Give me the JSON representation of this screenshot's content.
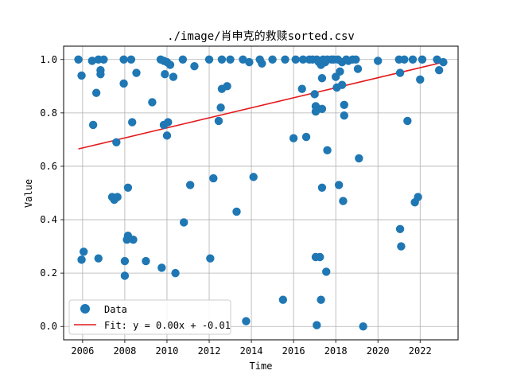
{
  "chart_data": {
    "type": "scatter",
    "title": "./image/肖申克的救赎sorted.csv",
    "xlabel": "Time",
    "ylabel": "Value",
    "xlim": [
      2005.1,
      2023.8
    ],
    "ylim": [
      -0.05,
      1.05
    ],
    "x_ticks": [
      2006,
      2008,
      2010,
      2012,
      2014,
      2016,
      2018,
      2020,
      2022
    ],
    "y_ticks": [
      0.0,
      0.2,
      0.4,
      0.6,
      0.8,
      1.0
    ],
    "x_tick_labels": [
      "2006",
      "2008",
      "2010",
      "2012",
      "2014",
      "2016",
      "2018",
      "2020",
      "2022"
    ],
    "y_tick_labels": [
      "0.0",
      "0.2",
      "0.4",
      "0.6",
      "0.8",
      "1.0"
    ],
    "grid": true,
    "legend_position": "lower-left",
    "colors": {
      "points": "#1f77b4",
      "fit": "#e31a1c",
      "grid": "#b0b0b0"
    },
    "series": [
      {
        "name": "Data",
        "kind": "scatter",
        "points": [
          [
            2005.8,
            1.0
          ],
          [
            2005.95,
            0.94
          ],
          [
            2006.05,
            0.28
          ],
          [
            2005.95,
            0.25
          ],
          [
            2006.45,
            0.995
          ],
          [
            2006.5,
            0.755
          ],
          [
            2006.65,
            0.875
          ],
          [
            2006.75,
            1.0
          ],
          [
            2006.75,
            0.255
          ],
          [
            2006.85,
            0.96
          ],
          [
            2006.85,
            0.945
          ],
          [
            2007.0,
            1.0
          ],
          [
            2007.4,
            0.485
          ],
          [
            2007.5,
            0.475
          ],
          [
            2007.6,
            0.69
          ],
          [
            2007.65,
            0.485
          ],
          [
            2007.95,
            0.91
          ],
          [
            2007.95,
            1.0
          ],
          [
            2008.0,
            0.245
          ],
          [
            2008.0,
            0.19
          ],
          [
            2008.1,
            0.325
          ],
          [
            2008.15,
            0.34
          ],
          [
            2008.15,
            0.52
          ],
          [
            2008.3,
            1.0
          ],
          [
            2008.35,
            0.765
          ],
          [
            2008.4,
            0.325
          ],
          [
            2008.55,
            0.95
          ],
          [
            2009.0,
            0.245
          ],
          [
            2009.3,
            0.84
          ],
          [
            2009.7,
            1.0
          ],
          [
            2009.75,
            0.22
          ],
          [
            2009.85,
            0.755
          ],
          [
            2009.85,
            0.995
          ],
          [
            2009.9,
            0.945
          ],
          [
            2010.0,
            0.715
          ],
          [
            2010.0,
            0.99
          ],
          [
            2010.05,
            0.765
          ],
          [
            2010.15,
            0.98
          ],
          [
            2010.3,
            0.935
          ],
          [
            2010.4,
            0.2
          ],
          [
            2010.75,
            1.0
          ],
          [
            2010.8,
            0.39
          ],
          [
            2011.1,
            0.53
          ],
          [
            2011.3,
            0.975
          ],
          [
            2012.0,
            1.0
          ],
          [
            2012.05,
            0.255
          ],
          [
            2012.2,
            0.555
          ],
          [
            2012.45,
            0.77
          ],
          [
            2012.55,
            0.82
          ],
          [
            2012.6,
            0.89
          ],
          [
            2012.6,
            1.0
          ],
          [
            2012.85,
            0.9
          ],
          [
            2013.0,
            1.0
          ],
          [
            2013.3,
            0.43
          ],
          [
            2013.6,
            1.0
          ],
          [
            2013.75,
            0.02
          ],
          [
            2013.9,
            0.99
          ],
          [
            2014.1,
            0.56
          ],
          [
            2014.4,
            1.0
          ],
          [
            2014.5,
            0.985
          ],
          [
            2015.0,
            1.0
          ],
          [
            2015.5,
            0.1
          ],
          [
            2015.6,
            1.0
          ],
          [
            2016.0,
            0.705
          ],
          [
            2016.1,
            1.0
          ],
          [
            2016.4,
            0.89
          ],
          [
            2016.45,
            1.0
          ],
          [
            2016.6,
            0.71
          ],
          [
            2016.75,
            1.0
          ],
          [
            2016.9,
            1.0
          ],
          [
            2017.0,
            0.87
          ],
          [
            2017.05,
            0.825
          ],
          [
            2017.05,
            0.805
          ],
          [
            2017.05,
            0.26
          ],
          [
            2017.1,
            0.005
          ],
          [
            2017.1,
            1.0
          ],
          [
            2017.2,
            0.99
          ],
          [
            2017.25,
            0.26
          ],
          [
            2017.3,
            0.98
          ],
          [
            2017.3,
            0.1
          ],
          [
            2017.35,
            0.52
          ],
          [
            2017.35,
            0.93
          ],
          [
            2017.35,
            0.815
          ],
          [
            2017.4,
            1.0
          ],
          [
            2017.5,
            0.99
          ],
          [
            2017.55,
            0.205
          ],
          [
            2017.6,
            0.66
          ],
          [
            2017.6,
            1.0
          ],
          [
            2017.8,
            1.0
          ],
          [
            2017.9,
            1.0
          ],
          [
            2018.0,
            0.935
          ],
          [
            2018.05,
            0.895
          ],
          [
            2018.1,
            1.0
          ],
          [
            2018.15,
            0.53
          ],
          [
            2018.2,
            0.955
          ],
          [
            2018.3,
            0.99
          ],
          [
            2018.3,
            0.905
          ],
          [
            2018.35,
            0.47
          ],
          [
            2018.4,
            0.83
          ],
          [
            2018.4,
            0.79
          ],
          [
            2018.5,
            1.0
          ],
          [
            2018.6,
            0.995
          ],
          [
            2018.8,
            1.0
          ],
          [
            2018.95,
            1.0
          ],
          [
            2019.05,
            0.965
          ],
          [
            2019.1,
            0.63
          ],
          [
            2019.3,
            0.0
          ],
          [
            2020.0,
            0.995
          ],
          [
            2021.0,
            1.0
          ],
          [
            2021.05,
            0.365
          ],
          [
            2021.05,
            0.95
          ],
          [
            2021.1,
            0.3
          ],
          [
            2021.25,
            1.0
          ],
          [
            2021.4,
            0.77
          ],
          [
            2021.65,
            1.0
          ],
          [
            2021.75,
            0.465
          ],
          [
            2021.9,
            0.485
          ],
          [
            2022.0,
            0.925
          ],
          [
            2022.1,
            1.0
          ],
          [
            2022.8,
            1.0
          ],
          [
            2022.9,
            0.96
          ],
          [
            2023.1,
            0.99
          ]
        ]
      },
      {
        "name": "Fit: y = 0.00x + -0.01",
        "kind": "line",
        "points": [
          [
            2005.8,
            0.665
          ],
          [
            2023.1,
            0.99
          ]
        ]
      }
    ]
  }
}
